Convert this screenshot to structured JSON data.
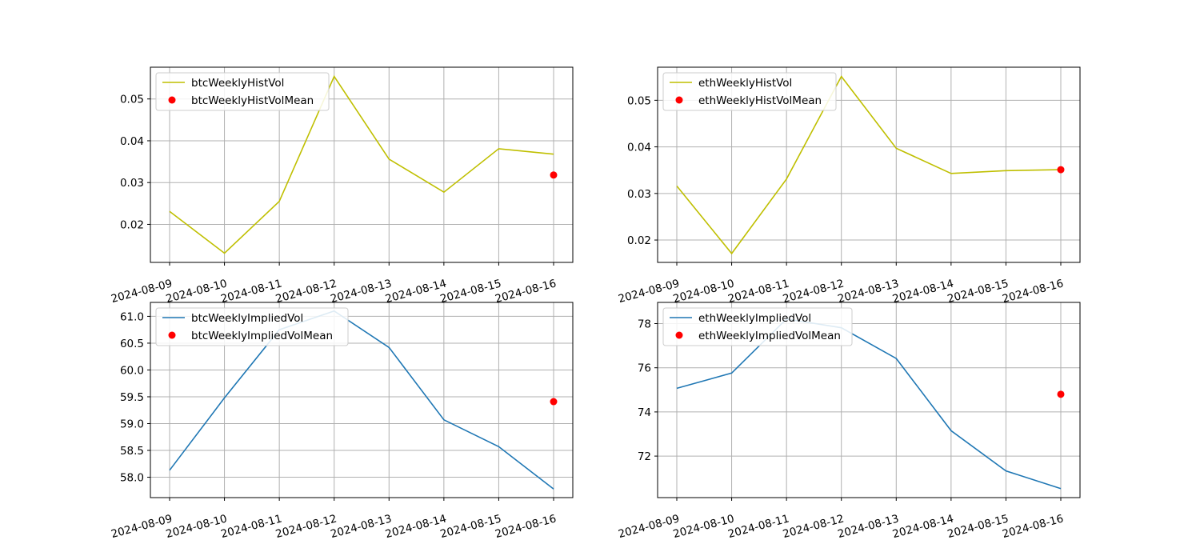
{
  "chart_data": [
    {
      "type": "line",
      "x": [
        "2024-08-09",
        "2024-08-10",
        "2024-08-11",
        "2024-08-12",
        "2024-08-13",
        "2024-08-14",
        "2024-08-15",
        "2024-08-16"
      ],
      "series": [
        {
          "name": "btcWeeklyHistVol",
          "values": [
            0.0231,
            0.0131,
            0.0255,
            0.0554,
            0.0356,
            0.0277,
            0.0381,
            0.0368
          ],
          "color": "#bfbf00"
        }
      ],
      "points": [
        {
          "name": "btcWeeklyHistVolMean",
          "x": "2024-08-16",
          "y": 0.0318,
          "color": "#ff0000"
        }
      ],
      "yticks": [
        "0.02",
        "0.03",
        "0.04",
        "0.05"
      ],
      "ylim": [
        0.0109,
        0.0576
      ],
      "grid": true,
      "legend": "upper-left"
    },
    {
      "type": "line",
      "x": [
        "2024-08-09",
        "2024-08-10",
        "2024-08-11",
        "2024-08-12",
        "2024-08-13",
        "2024-08-14",
        "2024-08-15",
        "2024-08-16"
      ],
      "series": [
        {
          "name": "ethWeeklyHistVol",
          "values": [
            0.0316,
            0.0171,
            0.0331,
            0.0551,
            0.0397,
            0.0343,
            0.0349,
            0.0351
          ],
          "color": "#bfbf00"
        }
      ],
      "points": [
        {
          "name": "ethWeeklyHistVolMean",
          "x": "2024-08-16",
          "y": 0.0351,
          "color": "#ff0000"
        }
      ],
      "yticks": [
        "0.02",
        "0.03",
        "0.04",
        "0.05"
      ],
      "ylim": [
        0.0152,
        0.0571
      ],
      "grid": true,
      "legend": "upper-left"
    },
    {
      "type": "line",
      "x": [
        "2024-08-09",
        "2024-08-10",
        "2024-08-11",
        "2024-08-12",
        "2024-08-13",
        "2024-08-14",
        "2024-08-15",
        "2024-08-16"
      ],
      "series": [
        {
          "name": "btcWeeklyImpliedVol",
          "values": [
            58.13,
            59.48,
            60.75,
            61.1,
            60.42,
            59.07,
            58.57,
            57.78
          ],
          "color": "#1f77b4"
        }
      ],
      "points": [
        {
          "name": "btcWeeklyImpliedVolMean",
          "x": "2024-08-16",
          "y": 59.41,
          "color": "#ff0000"
        }
      ],
      "yticks": [
        "58.0",
        "58.5",
        "59.0",
        "59.5",
        "60.0",
        "60.5",
        "61.0"
      ],
      "ylim": [
        57.62,
        61.26
      ],
      "grid": true,
      "legend": "upper-left"
    },
    {
      "type": "line",
      "x": [
        "2024-08-09",
        "2024-08-10",
        "2024-08-11",
        "2024-08-12",
        "2024-08-13",
        "2024-08-14",
        "2024-08-15",
        "2024-08-16"
      ],
      "series": [
        {
          "name": "ethWeeklyImpliedVol",
          "values": [
            75.07,
            75.76,
            78.21,
            77.81,
            76.42,
            73.15,
            71.33,
            70.53
          ],
          "color": "#1f77b4"
        }
      ],
      "points": [
        {
          "name": "ethWeeklyImpliedVolMean",
          "x": "2024-08-16",
          "y": 74.8,
          "color": "#ff0000"
        }
      ],
      "yticks": [
        "72",
        "74",
        "76",
        "78"
      ],
      "ylim": [
        70.12,
        78.96
      ],
      "grid": true,
      "legend": "upper-left"
    }
  ]
}
